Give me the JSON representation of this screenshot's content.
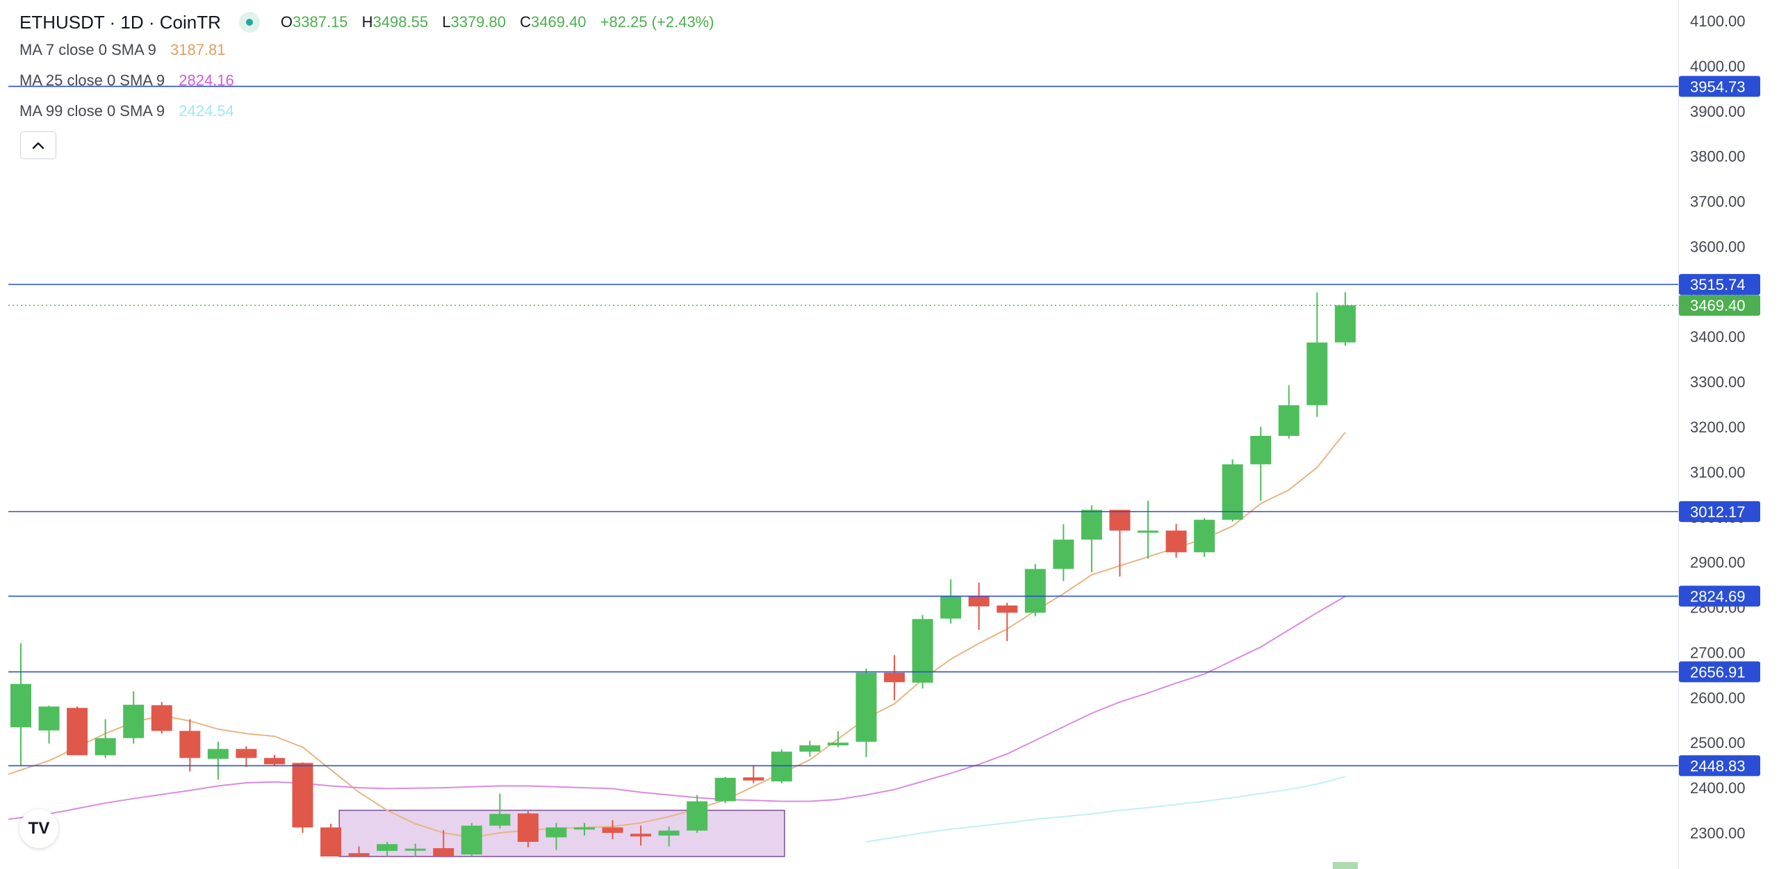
{
  "legend": {
    "symbol": "ETHUSDT · 1D · CoinTR",
    "ohlc": {
      "o_label": "O",
      "o": "3387.15",
      "h_label": "H",
      "h": "3498.55",
      "l_label": "L",
      "l": "3379.80",
      "c_label": "C",
      "c": "3469.40",
      "change": "+82.25 (+2.43%)"
    },
    "ma": [
      {
        "label": "MA 7 close 0 SMA 9",
        "value": "3187.81",
        "color": "#e0a060"
      },
      {
        "label": "MA 25 close 0 SMA 9",
        "value": "2824.16",
        "color": "#d25bd9"
      },
      {
        "label": "MA 99 close 0 SMA 9",
        "value": "2424.54",
        "color": "#9ee9ef"
      }
    ],
    "status_color": "#26a69a"
  },
  "collapse_icon": "chevron-up-icon",
  "logo": "TV",
  "colors": {
    "up": "#4ebe5c",
    "down": "#e0584a",
    "hline": "#2a4fd6",
    "price_badge": "#4caf50",
    "ma7": "#e8b582",
    "ma25": "#d98be0",
    "ma99": "#c2f0f3",
    "rect_fill": "#e7d3ee",
    "rect_stroke": "#7b4d91"
  },
  "chart_data": {
    "type": "candlestick",
    "symbol": "ETHUSDT",
    "interval": "1D",
    "ylim": [
      2260,
      4130
    ],
    "yticks": [
      "2300.00",
      "2400.00",
      "2500.00",
      "2600.00",
      "2700.00",
      "2800.00",
      "2900.00",
      "3000.00",
      "3100.00",
      "3200.00",
      "3300.00",
      "3400.00",
      "3500.00",
      "3600.00",
      "3700.00",
      "3800.00",
      "3900.00",
      "4000.00",
      "4100.00"
    ],
    "candles": [
      {
        "o": 2534,
        "h": 2720,
        "l": 2448,
        "c": 2630
      },
      {
        "o": 2527,
        "h": 2582,
        "l": 2498,
        "c": 2580
      },
      {
        "o": 2577,
        "h": 2580,
        "l": 2472,
        "c": 2472
      },
      {
        "o": 2472,
        "h": 2552,
        "l": 2466,
        "c": 2510
      },
      {
        "o": 2510,
        "h": 2614,
        "l": 2498,
        "c": 2584
      },
      {
        "o": 2583,
        "h": 2590,
        "l": 2520,
        "c": 2526
      },
      {
        "o": 2526,
        "h": 2552,
        "l": 2436,
        "c": 2466
      },
      {
        "o": 2464,
        "h": 2502,
        "l": 2418,
        "c": 2486
      },
      {
        "o": 2486,
        "h": 2492,
        "l": 2446,
        "c": 2466
      },
      {
        "o": 2466,
        "h": 2473,
        "l": 2448,
        "c": 2452
      },
      {
        "o": 2455,
        "h": 2456,
        "l": 2300,
        "c": 2312
      },
      {
        "o": 2312,
        "h": 2320,
        "l": 2180,
        "c": 2200
      },
      {
        "o": 2255,
        "h": 2270,
        "l": 2200,
        "c": 2200
      },
      {
        "o": 2260,
        "h": 2280,
        "l": 2230,
        "c": 2275
      },
      {
        "o": 2262,
        "h": 2276,
        "l": 2244,
        "c": 2265
      },
      {
        "o": 2266,
        "h": 2306,
        "l": 2232,
        "c": 2248
      },
      {
        "o": 2252,
        "h": 2322,
        "l": 2240,
        "c": 2316
      },
      {
        "o": 2316,
        "h": 2387,
        "l": 2310,
        "c": 2342
      },
      {
        "o": 2343,
        "h": 2348,
        "l": 2268,
        "c": 2280
      },
      {
        "o": 2290,
        "h": 2322,
        "l": 2262,
        "c": 2312
      },
      {
        "o": 2308,
        "h": 2322,
        "l": 2294,
        "c": 2312
      },
      {
        "o": 2312,
        "h": 2328,
        "l": 2286,
        "c": 2300
      },
      {
        "o": 2298,
        "h": 2316,
        "l": 2272,
        "c": 2292
      },
      {
        "o": 2294,
        "h": 2314,
        "l": 2270,
        "c": 2305
      },
      {
        "o": 2305,
        "h": 2384,
        "l": 2300,
        "c": 2370
      },
      {
        "o": 2370,
        "h": 2424,
        "l": 2366,
        "c": 2422
      },
      {
        "o": 2423,
        "h": 2450,
        "l": 2410,
        "c": 2416
      },
      {
        "o": 2414,
        "h": 2485,
        "l": 2410,
        "c": 2480
      },
      {
        "o": 2480,
        "h": 2504,
        "l": 2469,
        "c": 2494
      },
      {
        "o": 2494,
        "h": 2525,
        "l": 2490,
        "c": 2500
      },
      {
        "o": 2502,
        "h": 2664,
        "l": 2468,
        "c": 2655
      },
      {
        "o": 2655,
        "h": 2694,
        "l": 2594,
        "c": 2634
      },
      {
        "o": 2633,
        "h": 2783,
        "l": 2620,
        "c": 2774
      },
      {
        "o": 2775,
        "h": 2862,
        "l": 2764,
        "c": 2824
      },
      {
        "o": 2824,
        "h": 2855,
        "l": 2750,
        "c": 2802
      },
      {
        "o": 2804,
        "h": 2810,
        "l": 2725,
        "c": 2788
      },
      {
        "o": 2788,
        "h": 2896,
        "l": 2780,
        "c": 2885
      },
      {
        "o": 2885,
        "h": 2984,
        "l": 2858,
        "c": 2950
      },
      {
        "o": 2950,
        "h": 3026,
        "l": 2878,
        "c": 3016
      },
      {
        "o": 3016,
        "h": 3016,
        "l": 2868,
        "c": 2970
      },
      {
        "o": 2970,
        "h": 3036,
        "l": 2908,
        "c": 2970
      },
      {
        "o": 2970,
        "h": 2985,
        "l": 2910,
        "c": 2922
      },
      {
        "o": 2922,
        "h": 2998,
        "l": 2912,
        "c": 2994
      },
      {
        "o": 2994,
        "h": 3128,
        "l": 2990,
        "c": 3117
      },
      {
        "o": 3117,
        "h": 3200,
        "l": 3036,
        "c": 3180
      },
      {
        "o": 3180,
        "h": 3292,
        "l": 3174,
        "c": 3248
      },
      {
        "o": 3248,
        "h": 3498,
        "l": 3222,
        "c": 3387
      },
      {
        "o": 3387.15,
        "h": 3498.55,
        "l": 3379.8,
        "c": 3469.4
      }
    ],
    "series": [
      {
        "name": "MA 7 close 0 SMA 9",
        "values": [
          2430,
          2460,
          2490,
          2520,
          2545,
          2560,
          2548,
          2530,
          2520,
          2514,
          2490,
          2440,
          2390,
          2350,
          2320,
          2300,
          2290,
          2300,
          2306,
          2310,
          2312,
          2314,
          2322,
          2336,
          2353,
          2373,
          2403,
          2432,
          2462,
          2508,
          2554,
          2586,
          2640,
          2685,
          2720,
          2752,
          2792,
          2830,
          2872,
          2892,
          2912,
          2932,
          2952,
          2980,
          3030,
          3060,
          3110,
          3187.81
        ]
      },
      {
        "name": "MA 25 close 0 SMA 9",
        "values": [
          2330,
          2342,
          2354,
          2366,
          2376,
          2385,
          2394,
          2404,
          2411,
          2413,
          2410,
          2404,
          2400,
          2398,
          2399,
          2400,
          2402,
          2404,
          2404,
          2402,
          2400,
          2398,
          2390,
          2384,
          2378,
          2374,
          2372,
          2370,
          2370,
          2374,
          2384,
          2396,
          2414,
          2432,
          2452,
          2475,
          2505,
          2535,
          2565,
          2590,
          2610,
          2632,
          2652,
          2682,
          2712,
          2750,
          2788,
          2824.16
        ]
      },
      {
        "name": "MA 99 close 0 SMA 9",
        "values": [
          null,
          null,
          null,
          null,
          null,
          null,
          null,
          null,
          null,
          null,
          null,
          null,
          null,
          null,
          null,
          null,
          null,
          null,
          null,
          null,
          null,
          null,
          null,
          null,
          null,
          null,
          null,
          null,
          null,
          null,
          2280,
          2290,
          2300,
          2308,
          2315,
          2322,
          2330,
          2336,
          2342,
          2350,
          2356,
          2363,
          2370,
          2378,
          2387,
          2396,
          2408,
          2424.54
        ]
      }
    ],
    "hlines": [
      "3954.73",
      "3515.74",
      "3012.17",
      "2824.69",
      "2656.91",
      "2448.83"
    ],
    "last_price": "3469.40",
    "rectangle": {
      "x_start": 11.3,
      "x_end": 27.1,
      "y_top": 2350,
      "y_bottom": 2150
    },
    "volume": [
      {
        "index": 47,
        "value": 0.35
      }
    ]
  }
}
